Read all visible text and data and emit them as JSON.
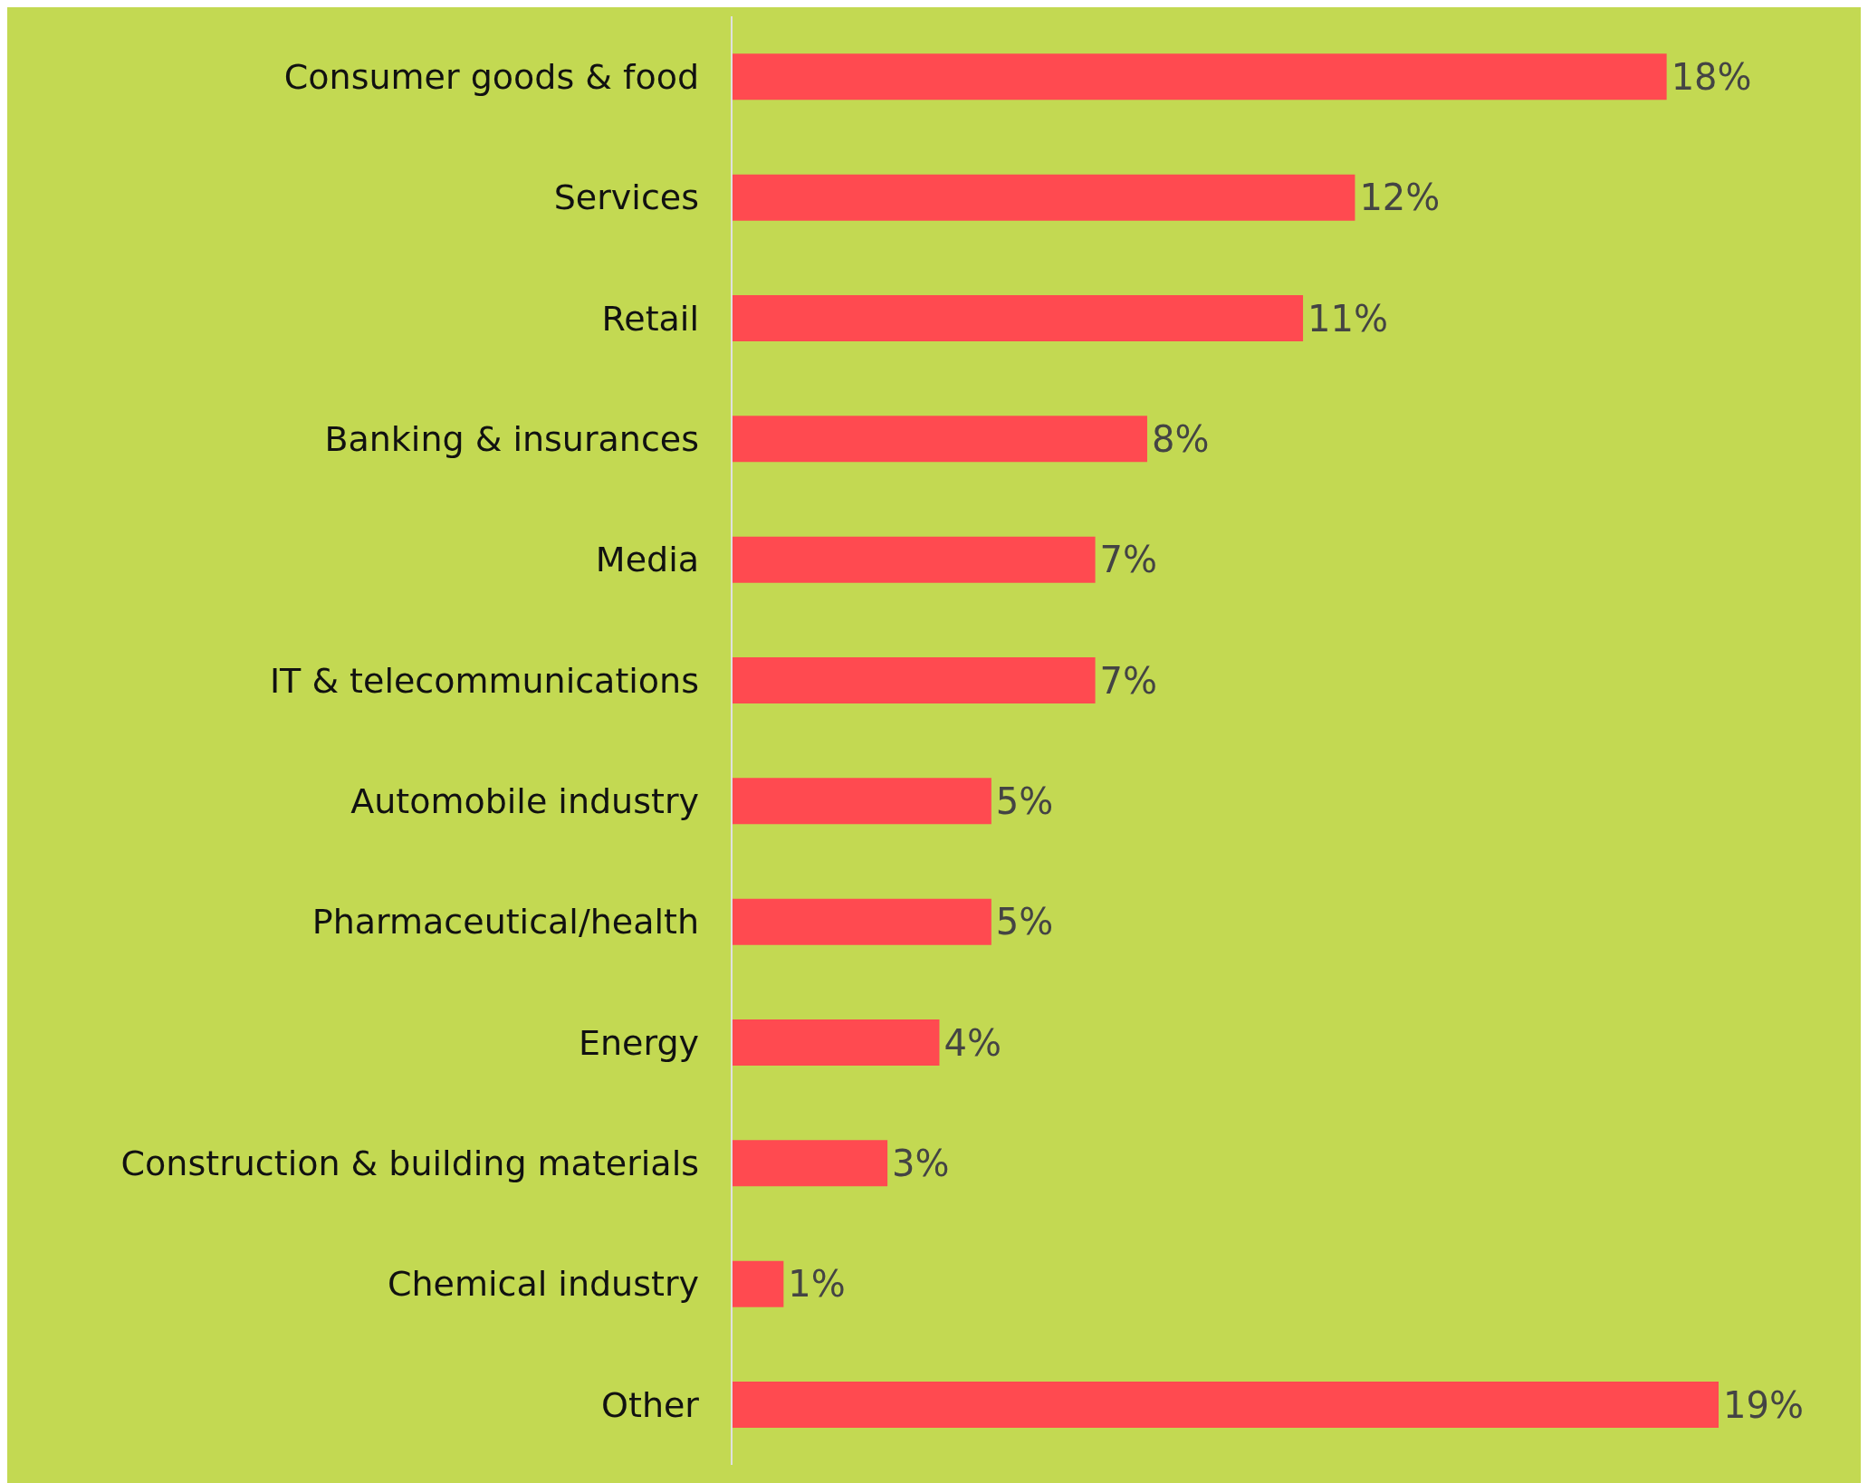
{
  "chart_data": {
    "type": "bar",
    "orientation": "horizontal",
    "categories": [
      "Consumer goods & food",
      "Services",
      "Retail",
      "Banking & insurances",
      "Media",
      "IT & telecommunications",
      "Automobile industry",
      "Pharmaceutical/health",
      "Energy",
      "Construction & building materials",
      "Chemical industry",
      "Other"
    ],
    "values": [
      18,
      12,
      11,
      8,
      7,
      7,
      5,
      5,
      4,
      3,
      1,
      19
    ],
    "value_labels": [
      "18%",
      "12%",
      "11%",
      "8%",
      "7%",
      "7%",
      "5%",
      "5%",
      "4%",
      "3%",
      "1%",
      "19%"
    ],
    "color": "#ff4a50"
  }
}
